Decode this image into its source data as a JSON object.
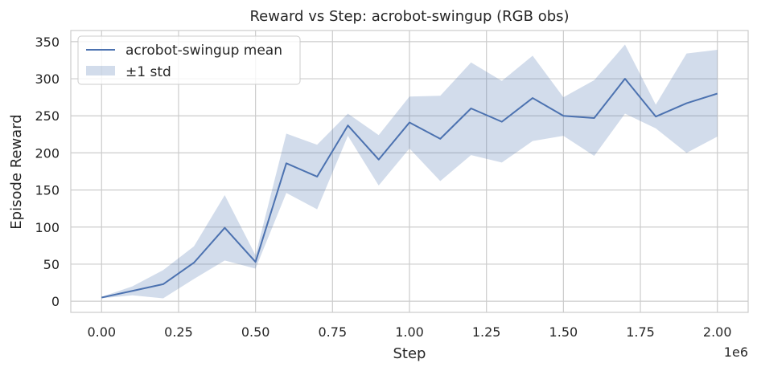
{
  "chart_data": {
    "type": "line",
    "title": "Reward vs Step: acrobot-swingup (RGB obs)",
    "xlabel": "Step",
    "ylabel": "Episode Reward",
    "x_offset_label": "1e6",
    "xlim": [
      -0.1,
      2.1
    ],
    "ylim": [
      -15,
      365
    ],
    "xticks": [
      0.0,
      0.25,
      0.5,
      0.75,
      1.0,
      1.25,
      1.5,
      1.75,
      2.0
    ],
    "xtick_labels": [
      "0.00",
      "0.25",
      "0.50",
      "0.75",
      "1.00",
      "1.25",
      "1.50",
      "1.75",
      "2.00"
    ],
    "yticks": [
      0,
      50,
      100,
      150,
      200,
      250,
      300,
      350
    ],
    "ytick_labels": [
      "0",
      "50",
      "100",
      "150",
      "200",
      "250",
      "300",
      "350"
    ],
    "grid": true,
    "legend_position": "top-left",
    "x": [
      0.0,
      0.1,
      0.2,
      0.3,
      0.4,
      0.5,
      0.6,
      0.7,
      0.8,
      0.9,
      1.0,
      1.1,
      1.2,
      1.3,
      1.4,
      1.5,
      1.6,
      1.7,
      1.8,
      1.9,
      2.0
    ],
    "series": [
      {
        "name": "acrobot-swingup mean",
        "color": "#4c72b0",
        "values": [
          5,
          14,
          23,
          52,
          99,
          53,
          186,
          168,
          237,
          191,
          241,
          219,
          260,
          242,
          274,
          250,
          247,
          300,
          249,
          267,
          280
        ]
      }
    ],
    "band": {
      "name": "±1 std",
      "color": "#4c72b0",
      "opacity": 0.25,
      "lower": [
        4,
        8,
        4,
        30,
        55,
        44,
        146,
        124,
        223,
        156,
        206,
        162,
        197,
        187,
        216,
        223,
        196,
        253,
        233,
        200,
        222
      ],
      "upper": [
        6,
        20,
        42,
        74,
        143,
        62,
        226,
        211,
        253,
        224,
        276,
        277,
        322,
        297,
        331,
        275,
        298,
        346,
        265,
        334,
        339
      ]
    }
  }
}
